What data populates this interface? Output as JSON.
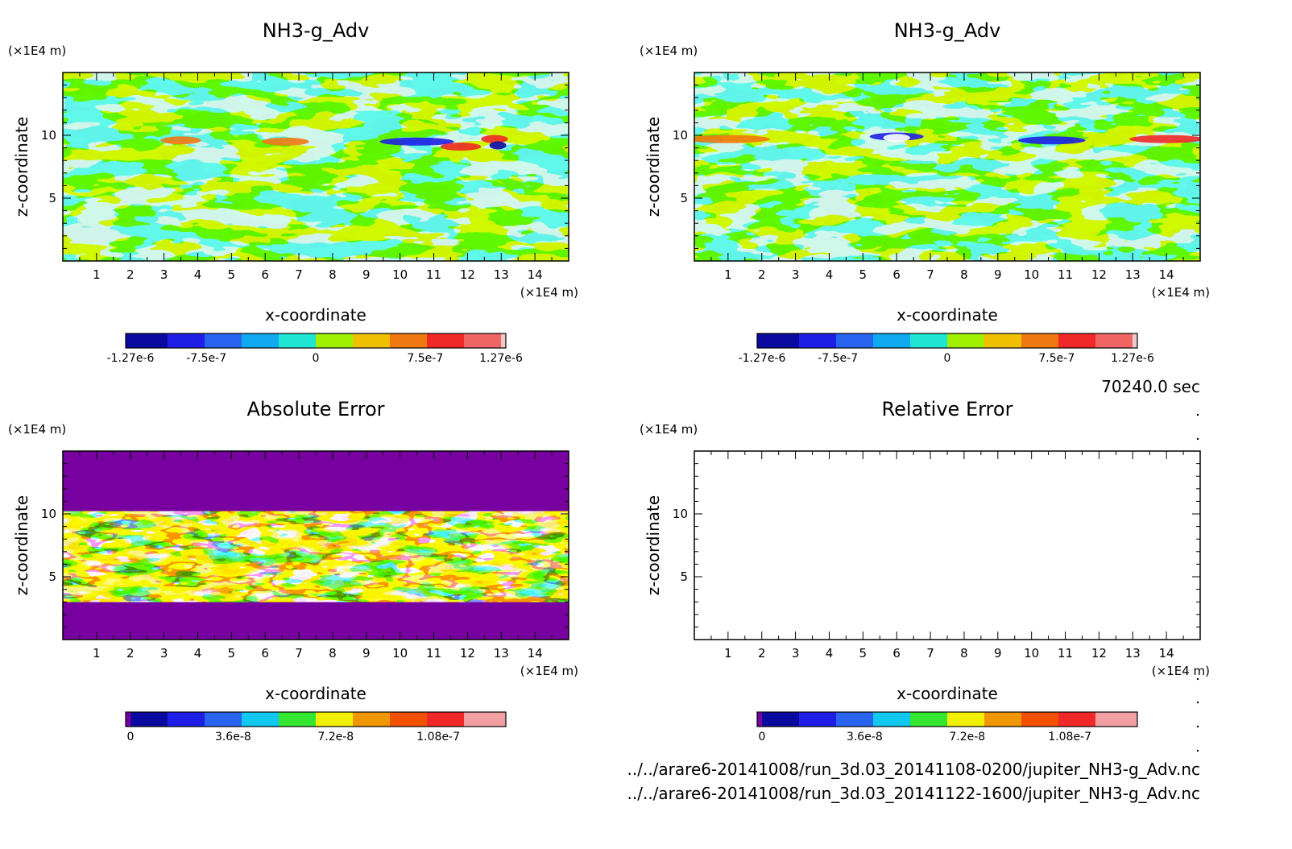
{
  "chart_data": [
    {
      "type": "heatmap",
      "title": "NH3-g_Adv",
      "xlabel": "x-coordinate",
      "ylabel": "z-coordinate",
      "x_unit": "(×1E4 m)",
      "y_unit": "(×1E4 m)",
      "xlim": [
        0,
        15
      ],
      "ylim": [
        0,
        15
      ],
      "x_ticks": [
        "1",
        "2",
        "3",
        "4",
        "5",
        "6",
        "7",
        "8",
        "9",
        "10",
        "11",
        "12",
        "13",
        "14"
      ],
      "y_ticks": [
        "5",
        "10"
      ],
      "colorbar": {
        "range": [
          -1.27e-06,
          1.27e-06
        ],
        "tick_values": [
          -1.27e-06,
          -7.5e-07,
          0,
          7.5e-07,
          1.27e-06
        ],
        "tick_labels": [
          "-1.27e-6",
          "-7.5e-7",
          "0",
          "7.5e-7",
          "1.27e-6"
        ],
        "colors": [
          "#0a0aa0",
          "#1e1ee6",
          "#2864f0",
          "#10aaf0",
          "#1ee6d2",
          "#a0f000",
          "#f0c000",
          "#f07810",
          "#f02828",
          "#f06464",
          "#f0c8c8"
        ]
      }
    },
    {
      "type": "heatmap",
      "title": "NH3-g_Adv",
      "xlabel": "x-coordinate",
      "ylabel": "z-coordinate",
      "x_unit": "(×1E4 m)",
      "y_unit": "(×1E4 m)",
      "xlim": [
        0,
        15
      ],
      "ylim": [
        0,
        15
      ],
      "x_ticks": [
        "1",
        "2",
        "3",
        "4",
        "5",
        "6",
        "7",
        "8",
        "9",
        "10",
        "11",
        "12",
        "13",
        "14"
      ],
      "y_ticks": [
        "5",
        "10"
      ],
      "colorbar": {
        "range": [
          -1.27e-06,
          1.27e-06
        ],
        "tick_values": [
          -1.27e-06,
          -7.5e-07,
          0,
          7.5e-07,
          1.27e-06
        ],
        "tick_labels": [
          "-1.27e-6",
          "-7.5e-7",
          "0",
          "7.5e-7",
          "1.27e-6"
        ],
        "colors": [
          "#0a0aa0",
          "#1e1ee6",
          "#2864f0",
          "#10aaf0",
          "#1ee6d2",
          "#a0f000",
          "#f0c000",
          "#f07810",
          "#f02828",
          "#f06464",
          "#f0c8c8"
        ]
      }
    },
    {
      "type": "heatmap",
      "title": "Absolute Error",
      "xlabel": "x-coordinate",
      "ylabel": "z-coordinate",
      "x_unit": "(×1E4 m)",
      "y_unit": "(×1E4 m)",
      "xlim": [
        0,
        15
      ],
      "ylim": [
        0,
        15
      ],
      "x_ticks": [
        "1",
        "2",
        "3",
        "4",
        "5",
        "6",
        "7",
        "8",
        "9",
        "10",
        "11",
        "12",
        "13",
        "14"
      ],
      "y_ticks": [
        "5",
        "10"
      ],
      "colorbar": {
        "range": [
          0,
          1.3e-07
        ],
        "tick_values": [
          0,
          3.6e-08,
          7.2e-08,
          1.08e-07
        ],
        "tick_labels": [
          "0",
          "3.6e-8",
          "7.2e-8",
          "1.08e-7"
        ],
        "colors": [
          "#7800a0",
          "#0a0aa0",
          "#1e1ee6",
          "#2864f0",
          "#10c8f0",
          "#32e632",
          "#f0f000",
          "#f09600",
          "#f05000",
          "#f02828",
          "#f0a0a0"
        ]
      }
    },
    {
      "type": "heatmap",
      "title": "Relative Error",
      "xlabel": "x-coordinate",
      "ylabel": "z-coordinate",
      "x_unit": "(×1E4 m)",
      "y_unit": "(×1E4 m)",
      "xlim": [
        0,
        15
      ],
      "ylim": [
        0,
        15
      ],
      "x_ticks": [
        "1",
        "2",
        "3",
        "4",
        "5",
        "6",
        "7",
        "8",
        "9",
        "10",
        "11",
        "12",
        "13",
        "14"
      ],
      "y_ticks": [
        "5",
        "10"
      ],
      "colorbar": {
        "range": [
          0,
          1.3e-07
        ],
        "tick_values": [
          0,
          3.6e-08,
          7.2e-08,
          1.08e-07
        ],
        "tick_labels": [
          "0",
          "3.6e-8",
          "7.2e-8",
          "1.08e-7"
        ],
        "colors": [
          "#7800a0",
          "#0a0aa0",
          "#1e1ee6",
          "#2864f0",
          "#10c8f0",
          "#32e632",
          "#f0f000",
          "#f09600",
          "#f05000",
          "#f02828",
          "#f0a0a0"
        ]
      }
    }
  ],
  "time_label": "70240.0 sec",
  "file_paths": [
    "../../arare6-20141008/run_3d.03_20141108-0200/jupiter_NH3-g_Adv.nc",
    "../../arare6-20141008/run_3d.03_20141122-1600/jupiter_NH3-g_Adv.nc"
  ]
}
